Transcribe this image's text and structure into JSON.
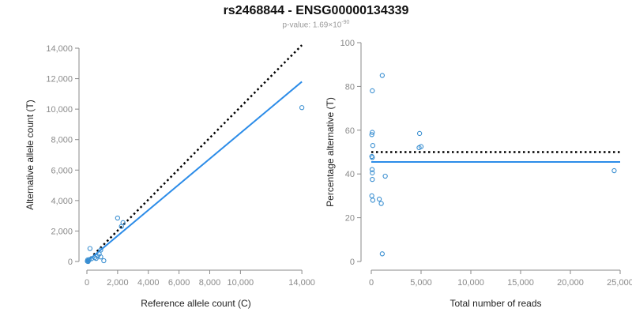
{
  "header": {
    "title": "rs2468844 - ENSG00000134339",
    "pvalue_prefix": "p-value: 1.69×10",
    "pvalue_exponent": "-90"
  },
  "colors": {
    "points": "#3a8fd1",
    "fit_line": "#2c8ce8",
    "reference_line": "#000000"
  },
  "chart_data": [
    {
      "type": "scatter",
      "title": "",
      "xlabel": "Reference allele count (C)",
      "ylabel": "Alternative allele count (T)",
      "xlim": [
        0,
        14200
      ],
      "ylim": [
        0,
        14000
      ],
      "xticks": [
        0,
        2000,
        4000,
        6000,
        8000,
        10000,
        14000
      ],
      "xtick_labels": [
        "0",
        "2,000",
        "4,000",
        "6,000",
        "8,000",
        "10,000",
        "14,000"
      ],
      "yticks": [
        0,
        2000,
        4000,
        6000,
        8000,
        10000,
        12000,
        14000
      ],
      "ytick_labels": [
        "0",
        "2,000",
        "4,000",
        "6,000",
        "8,000",
        "10,000",
        "12,000",
        "14,000"
      ],
      "grid": false,
      "points": [
        [
          14000,
          10100
        ],
        [
          2000,
          2850
        ],
        [
          2350,
          2550
        ],
        [
          2250,
          2300
        ],
        [
          200,
          850
        ],
        [
          900,
          750
        ],
        [
          800,
          500
        ],
        [
          900,
          300
        ],
        [
          700,
          350
        ],
        [
          600,
          200
        ],
        [
          1100,
          50
        ],
        [
          500,
          250
        ],
        [
          300,
          180
        ],
        [
          50,
          100
        ],
        [
          100,
          60
        ],
        [
          30,
          20
        ],
        [
          80,
          0
        ],
        [
          150,
          120
        ]
      ],
      "fit_line": [
        [
          0,
          0
        ],
        [
          14000,
          11800
        ]
      ],
      "reference_line": [
        [
          0,
          0
        ],
        [
          14000,
          14200
        ]
      ]
    },
    {
      "type": "scatter",
      "title": "",
      "xlabel": "Total number of reads",
      "ylabel": "Percentage alternative (T)",
      "xlim": [
        0,
        25000
      ],
      "ylim": [
        0,
        100
      ],
      "xticks": [
        0,
        5000,
        10000,
        15000,
        20000,
        25000
      ],
      "xtick_labels": [
        "0",
        "5,000",
        "10,000",
        "15,000",
        "20,000",
        "25,000"
      ],
      "yticks": [
        0,
        20,
        40,
        60,
        80,
        100
      ],
      "ytick_labels": [
        "0",
        "20",
        "40",
        "60",
        "80",
        "100"
      ],
      "grid": false,
      "points": [
        [
          24400,
          41.5
        ],
        [
          1100,
          85
        ],
        [
          100,
          78
        ],
        [
          100,
          59
        ],
        [
          50,
          58
        ],
        [
          150,
          53
        ],
        [
          4850,
          58.5
        ],
        [
          4800,
          52
        ],
        [
          5000,
          52.5
        ],
        [
          50,
          48
        ],
        [
          100,
          47.5
        ],
        [
          80,
          42
        ],
        [
          100,
          40.5
        ],
        [
          1400,
          39
        ],
        [
          100,
          37.5
        ],
        [
          50,
          30
        ],
        [
          150,
          28
        ],
        [
          800,
          28.5
        ],
        [
          1000,
          26.5
        ],
        [
          1100,
          3.5
        ]
      ],
      "fit_line": [
        [
          0,
          45.5
        ],
        [
          25000,
          45.5
        ]
      ],
      "reference_line": [
        [
          0,
          50
        ],
        [
          25000,
          50
        ]
      ]
    }
  ]
}
